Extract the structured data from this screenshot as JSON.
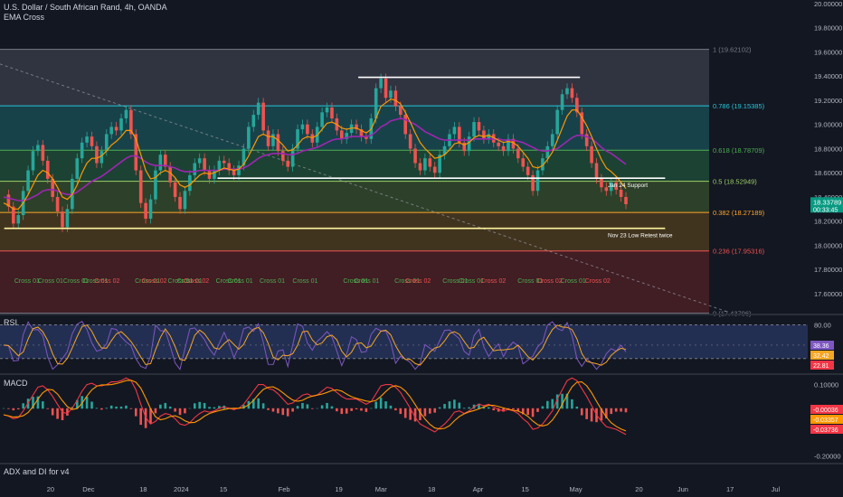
{
  "header": {
    "symbol_title": "U.S. Dollar / South African Rand, 4h, OANDA",
    "indicator_1": "EMA Cross"
  },
  "panes": {
    "rsi_label": "RSI",
    "macd_label": "MACD",
    "adx_label": "ADX and DI for v4"
  },
  "chart_data": [
    {
      "type": "line",
      "name": "price",
      "price_axis_ticks": [
        "20.00000",
        "19.80000",
        "19.60000",
        "19.40000",
        "19.20000",
        "19.00000",
        "18.80000",
        "18.60000",
        "18.40000",
        "18.20000",
        "18.00000",
        "17.80000",
        "17.60000"
      ],
      "ylim": [
        17.45,
        20.0
      ],
      "price_ticks_values": [
        20.0,
        19.8,
        19.6,
        19.4,
        19.2,
        19.0,
        18.8,
        18.6,
        18.4,
        18.2,
        18.0,
        17.8,
        17.6
      ],
      "time_axis_labels": [
        "20",
        "Dec",
        "18",
        "2024",
        "15",
        "Feb",
        "19",
        "Mar",
        "18",
        "Apr",
        "15",
        "May",
        "20",
        "Jun",
        "17",
        "Jul"
      ],
      "time_axis_index": [
        0.06,
        0.105,
        0.17,
        0.215,
        0.265,
        0.337,
        0.402,
        0.452,
        0.512,
        0.567,
        0.623,
        0.683,
        0.758,
        0.81,
        0.866,
        0.92
      ],
      "current_price": "18.33789",
      "countdown": "00:33:45",
      "fib_levels": [
        {
          "label": "1 (19.62102)",
          "value": 19.62102,
          "color": "#787b86"
        },
        {
          "label": "0.786 (19.15385)",
          "value": 19.15385,
          "color": "#26c6da"
        },
        {
          "label": "0.618 (18.78709)",
          "value": 18.78709,
          "color": "#4caf50"
        },
        {
          "label": "0.5 (18.52949)",
          "value": 18.52949,
          "color": "#9ccc65"
        },
        {
          "label": "0.382 (18.27189)",
          "value": 18.27189,
          "color": "#ffa726"
        },
        {
          "label": "0.236 (17.95316)",
          "value": 17.95316,
          "color": "#ef5350"
        },
        {
          "label": "0 (17.43796)",
          "value": 17.43796,
          "color": "#787b86"
        }
      ],
      "fib_zone_colors": [
        "#363a45",
        "#1a4a50",
        "#1f4a36",
        "#33482a",
        "#4a3a1e",
        "#4a1f25"
      ],
      "annotations": [
        {
          "text": "Jan 24 Support",
          "value": 18.555
        },
        {
          "text": "Nov 23 Low Retest twice",
          "value": 18.14
        }
      ],
      "horizontal_lines": [
        {
          "value": 19.39,
          "x_from": 0.425,
          "x_to": 0.688
        },
        {
          "value": 18.555,
          "x_from": 0.258,
          "x_to": 0.789
        },
        {
          "value": 18.14,
          "x_from": 0.005,
          "x_to": 0.789
        }
      ],
      "cross_labels": [
        {
          "text": "Cross 01",
          "x": 0.017,
          "kind": "01"
        },
        {
          "text": "Cross 01",
          "x": 0.045,
          "kind": "01"
        },
        {
          "text": "Cross 01",
          "x": 0.075,
          "kind": "01"
        },
        {
          "text": "Cross 01",
          "x": 0.098,
          "kind": "01"
        },
        {
          "text": "Cross 02",
          "x": 0.112,
          "kind": "02"
        },
        {
          "text": "Cross 01",
          "x": 0.16,
          "kind": "01"
        },
        {
          "text": "Cross 02",
          "x": 0.168,
          "kind": "02"
        },
        {
          "text": "Cross 01",
          "x": 0.199,
          "kind": "01"
        },
        {
          "text": "Cross 01",
          "x": 0.21,
          "kind": "01"
        },
        {
          "text": "Cross 02",
          "x": 0.218,
          "kind": "02"
        },
        {
          "text": "Cross 01",
          "x": 0.256,
          "kind": "01"
        },
        {
          "text": "Cross 01",
          "x": 0.27,
          "kind": "01"
        },
        {
          "text": "Cross 01",
          "x": 0.308,
          "kind": "01"
        },
        {
          "text": "Cross 01",
          "x": 0.347,
          "kind": "01"
        },
        {
          "text": "Cross 01",
          "x": 0.407,
          "kind": "01"
        },
        {
          "text": "Cross 01",
          "x": 0.42,
          "kind": "01"
        },
        {
          "text": "Cross 01",
          "x": 0.468,
          "kind": "01"
        },
        {
          "text": "Cross 02",
          "x": 0.481,
          "kind": "02"
        },
        {
          "text": "Cross 01",
          "x": 0.525,
          "kind": "01"
        },
        {
          "text": "Cross 01",
          "x": 0.544,
          "kind": "01"
        },
        {
          "text": "Cross 02",
          "x": 0.57,
          "kind": "02"
        },
        {
          "text": "Cross 01",
          "x": 0.614,
          "kind": "01"
        },
        {
          "text": "Cross 02",
          "x": 0.637,
          "kind": "02"
        },
        {
          "text": "Cross 01",
          "x": 0.665,
          "kind": "01"
        },
        {
          "text": "Cross 02",
          "x": 0.694,
          "kind": "02"
        }
      ],
      "close": [
        18.42,
        18.32,
        18.18,
        18.25,
        18.45,
        18.62,
        18.78,
        18.83,
        18.7,
        18.55,
        18.4,
        18.28,
        18.15,
        18.3,
        18.55,
        18.72,
        18.85,
        18.9,
        18.82,
        18.68,
        18.78,
        18.92,
        18.98,
        18.95,
        19.05,
        19.12,
        18.92,
        18.62,
        18.35,
        18.22,
        18.38,
        18.62,
        18.75,
        18.65,
        18.52,
        18.4,
        18.3,
        18.45,
        18.58,
        18.68,
        18.72,
        18.62,
        18.55,
        18.62,
        18.7,
        18.68,
        18.62,
        18.58,
        18.66,
        18.8,
        18.98,
        19.08,
        19.18,
        18.95,
        18.82,
        18.92,
        18.78,
        18.7,
        18.65,
        18.8,
        18.96,
        19.0,
        18.92,
        18.85,
        18.98,
        19.1,
        19.14,
        19.05,
        18.95,
        18.88,
        18.93,
        19.0,
        18.96,
        18.9,
        18.88,
        19.05,
        19.3,
        19.38,
        19.22,
        19.28,
        19.15,
        19.08,
        18.92,
        18.8,
        18.68,
        18.62,
        18.72,
        18.65,
        18.6,
        18.75,
        18.82,
        18.92,
        18.98,
        18.85,
        18.78,
        18.9,
        19.02,
        18.95,
        18.88,
        18.92,
        18.85,
        18.82,
        18.78,
        18.88,
        18.8,
        18.72,
        18.65,
        18.58,
        18.45,
        18.62,
        18.72,
        18.82,
        18.92,
        19.12,
        19.25,
        19.3,
        19.22,
        19.1,
        18.92,
        18.82,
        18.68,
        18.55,
        18.48,
        18.45,
        18.52,
        18.46,
        18.4,
        18.34
      ],
      "ema_fast": [
        18.35,
        18.33,
        18.3,
        18.3,
        18.35,
        18.42,
        18.5,
        18.58,
        18.62,
        18.6,
        18.55,
        18.48,
        18.4,
        18.38,
        18.42,
        18.5,
        18.6,
        18.68,
        18.72,
        18.72,
        18.74,
        18.78,
        18.83,
        18.86,
        18.9,
        18.95,
        18.95,
        18.88,
        18.75,
        18.62,
        18.55,
        18.56,
        18.6,
        18.62,
        18.6,
        18.56,
        18.5,
        18.48,
        18.5,
        18.54,
        18.58,
        18.6,
        18.59,
        18.6,
        18.62,
        18.64,
        18.63,
        18.62,
        18.63,
        18.67,
        18.74,
        18.82,
        18.9,
        18.92,
        18.9,
        18.9,
        18.87,
        18.83,
        18.78,
        18.79,
        18.83,
        18.88,
        18.9,
        18.89,
        18.91,
        18.96,
        19.01,
        19.02,
        19.0,
        18.97,
        18.96,
        18.97,
        18.97,
        18.95,
        18.93,
        18.96,
        19.05,
        19.15,
        19.18,
        19.21,
        19.2,
        19.17,
        19.1,
        19.02,
        18.93,
        18.85,
        18.8,
        18.76,
        18.72,
        18.73,
        18.75,
        18.79,
        18.84,
        18.85,
        18.83,
        18.85,
        18.89,
        18.91,
        18.9,
        18.91,
        18.89,
        18.87,
        18.85,
        18.86,
        18.85,
        18.82,
        18.77,
        18.72,
        18.65,
        18.64,
        18.66,
        18.71,
        18.77,
        18.87,
        18.97,
        19.07,
        19.12,
        19.12,
        19.06,
        18.99,
        18.9,
        18.8,
        18.71,
        18.64,
        18.61,
        18.57,
        18.52,
        18.47
      ],
      "ema_slow": [
        18.4,
        18.39,
        18.38,
        18.37,
        18.37,
        18.38,
        18.4,
        18.42,
        18.45,
        18.46,
        18.46,
        18.45,
        18.43,
        18.42,
        18.42,
        18.44,
        18.47,
        18.5,
        18.53,
        18.55,
        18.57,
        18.6,
        18.63,
        18.66,
        18.69,
        18.72,
        18.74,
        18.74,
        18.72,
        18.69,
        18.67,
        18.66,
        18.66,
        18.66,
        18.65,
        18.64,
        18.62,
        18.61,
        18.61,
        18.61,
        18.62,
        18.62,
        18.62,
        18.62,
        18.62,
        18.63,
        18.63,
        18.63,
        18.63,
        18.64,
        18.66,
        18.69,
        18.72,
        18.74,
        18.75,
        18.76,
        18.76,
        18.76,
        18.75,
        18.75,
        18.76,
        18.78,
        18.79,
        18.8,
        18.81,
        18.83,
        18.85,
        18.87,
        18.88,
        18.88,
        18.89,
        18.9,
        18.9,
        18.9,
        18.9,
        18.91,
        18.94,
        18.98,
        19.0,
        19.03,
        19.04,
        19.05,
        19.04,
        19.02,
        19.0,
        18.97,
        18.94,
        18.92,
        18.9,
        18.88,
        18.87,
        18.87,
        18.87,
        18.87,
        18.87,
        18.87,
        18.88,
        18.88,
        18.88,
        18.88,
        18.88,
        18.88,
        18.87,
        18.87,
        18.87,
        18.86,
        18.85,
        18.83,
        18.81,
        18.79,
        18.78,
        18.78,
        18.79,
        18.8,
        18.83,
        18.86,
        18.89,
        18.91,
        18.91,
        18.9,
        18.88,
        18.85,
        18.81,
        18.78,
        18.76,
        18.73,
        18.7,
        18.67
      ]
    },
    {
      "type": "line",
      "name": "rsi",
      "axis_ticks": [
        "80.00"
      ],
      "ylim": [
        15,
        90
      ],
      "band": [
        30,
        80
      ],
      "midline": 50,
      "value_badges": [
        {
          "text": "38.36",
          "value": 38.36,
          "color": "#7e57c2"
        },
        {
          "text": "32.42",
          "value": 32.42,
          "color": "#f5a623"
        },
        {
          "text": "22.81",
          "value": 22.81,
          "color": "#f23645"
        }
      ]
    },
    {
      "type": "bar",
      "name": "macd",
      "axis_ticks": [
        "0.10000",
        "-0.20000"
      ],
      "ylim": [
        -0.22,
        0.12
      ],
      "value_badges": [
        {
          "text": "-0.00036",
          "value": -0.00036,
          "color": "#f23645"
        },
        {
          "text": "-0.03357",
          "value": -0.03357,
          "color": "#ff9800"
        },
        {
          "text": "-0.03736",
          "value": -0.03736,
          "color": "#f23645"
        }
      ]
    }
  ]
}
